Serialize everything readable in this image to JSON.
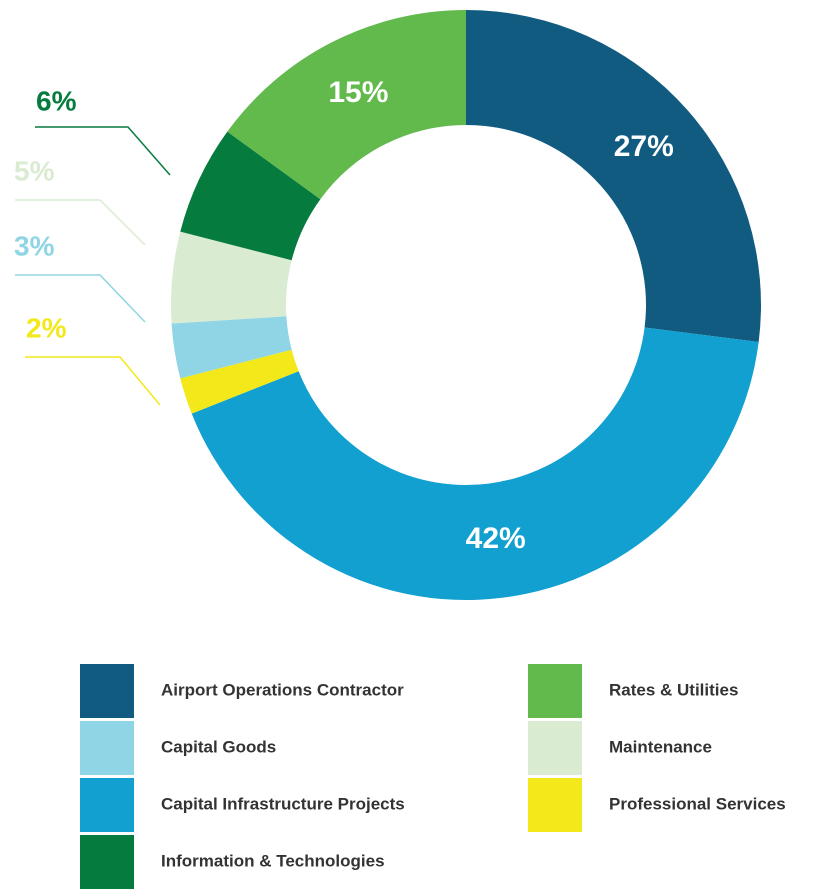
{
  "chart_data": {
    "type": "donut",
    "categories": [
      "Airport Operations Contractor",
      "Capital Infrastructure Projects",
      "Professional Services",
      "Capital Goods",
      "Maintenance",
      "Information & Technologies",
      "Rates & Utilities"
    ],
    "values": [
      27,
      42,
      2,
      3,
      5,
      6,
      15
    ],
    "value_labels": [
      "27%",
      "42%",
      "2%",
      "3%",
      "5%",
      "6%",
      "15%"
    ],
    "colors": [
      "#125b80",
      "#11a0d0",
      "#f2e81a",
      "#8fd5e5",
      "#d9ebd1",
      "#067b3e",
      "#62b94c"
    ]
  }
}
